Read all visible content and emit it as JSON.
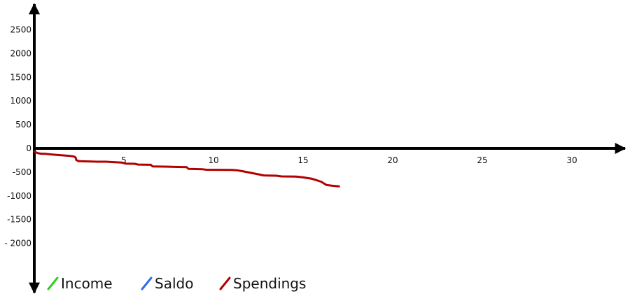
{
  "chart_data": {
    "type": "line",
    "title": "",
    "xlabel": "",
    "ylabel": "",
    "x_ticks": [
      "5",
      "10",
      "15",
      "20",
      "25",
      "30"
    ],
    "y_ticks": [
      "2500",
      "2000",
      "1500",
      "1000",
      "500",
      "0",
      "-500",
      "-1000",
      "-1500",
      "- 2000"
    ],
    "xlim": [
      0,
      33
    ],
    "ylim": [
      -2500,
      2800
    ],
    "grid": false,
    "legend_position": "bottom-left",
    "series": [
      {
        "name": "Income",
        "color": "#33cc22",
        "points": []
      },
      {
        "name": "Saldo",
        "color": "#2a6ee8",
        "points": []
      },
      {
        "name": "Spendings",
        "color": "#b30000",
        "points": [
          [
            0.0,
            -70
          ],
          [
            0.2,
            -100
          ],
          [
            0.35,
            -110
          ],
          [
            0.6,
            -115
          ],
          [
            1.0,
            -130
          ],
          [
            1.5,
            -145
          ],
          [
            2.0,
            -160
          ],
          [
            2.2,
            -170
          ],
          [
            2.3,
            -190
          ],
          [
            2.35,
            -250
          ],
          [
            2.5,
            -270
          ],
          [
            3.0,
            -275
          ],
          [
            3.5,
            -280
          ],
          [
            4.0,
            -280
          ],
          [
            4.5,
            -290
          ],
          [
            4.9,
            -300
          ],
          [
            5.1,
            -320
          ],
          [
            5.6,
            -325
          ],
          [
            5.8,
            -340
          ],
          [
            6.5,
            -345
          ],
          [
            6.6,
            -380
          ],
          [
            7.5,
            -385
          ],
          [
            7.8,
            -390
          ],
          [
            8.5,
            -395
          ],
          [
            8.6,
            -430
          ],
          [
            9.4,
            -440
          ],
          [
            9.6,
            -450
          ],
          [
            11.0,
            -455
          ],
          [
            11.3,
            -460
          ],
          [
            11.6,
            -480
          ],
          [
            12.5,
            -545
          ],
          [
            12.8,
            -570
          ],
          [
            13.5,
            -575
          ],
          [
            13.8,
            -590
          ],
          [
            14.6,
            -595
          ],
          [
            15.0,
            -610
          ],
          [
            15.5,
            -640
          ],
          [
            16.0,
            -700
          ],
          [
            16.3,
            -770
          ],
          [
            16.6,
            -785
          ],
          [
            17.0,
            -800
          ]
        ]
      }
    ]
  }
}
